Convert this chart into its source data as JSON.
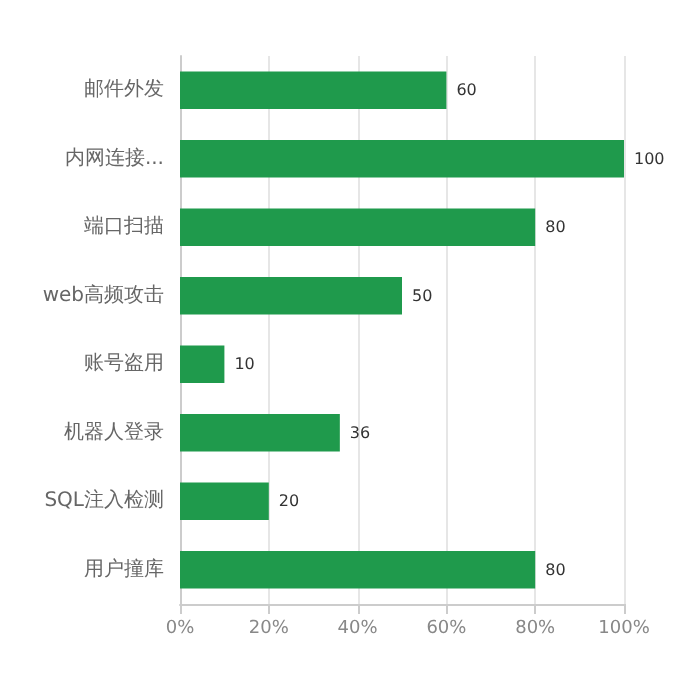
{
  "chart_data": {
    "type": "bar",
    "orientation": "horizontal",
    "categories": [
      "邮件外发",
      "内网连接...",
      "端口扫描",
      "web高频攻击",
      "账号盗用",
      "机器人登录",
      "SQL注入检测",
      "用户撞库"
    ],
    "values": [
      60,
      100,
      80,
      50,
      10,
      36,
      20,
      80
    ],
    "color": "#1f9a4c",
    "data_labels": true,
    "grid": "x",
    "xlim": [
      0,
      100
    ],
    "xticks": [
      {
        "value": 0,
        "label": "0%"
      },
      {
        "value": 20,
        "label": "20%"
      },
      {
        "value": 40,
        "label": "40%"
      },
      {
        "value": 60,
        "label": "60%"
      },
      {
        "value": 80,
        "label": "80%"
      },
      {
        "value": 100,
        "label": "100%"
      }
    ]
  }
}
